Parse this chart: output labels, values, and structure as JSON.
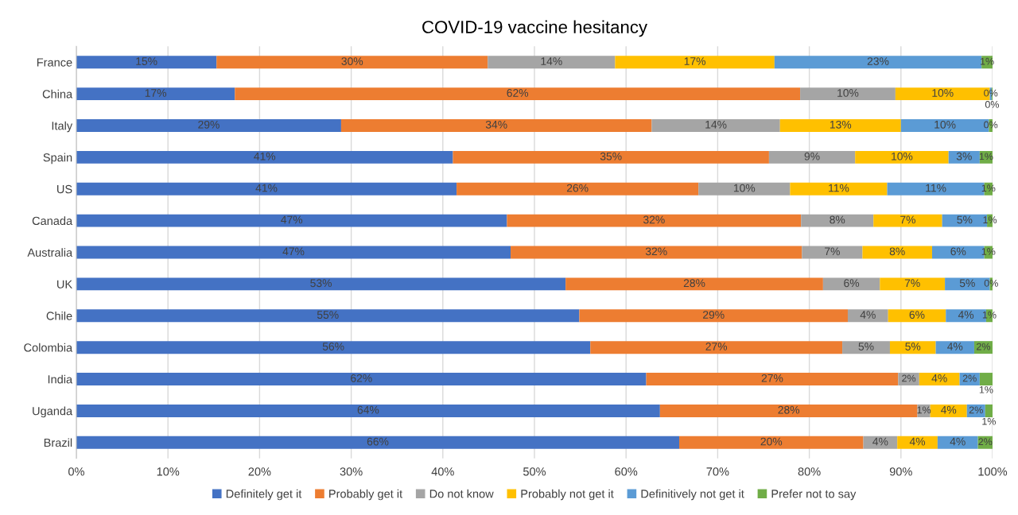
{
  "chart_data": {
    "type": "bar",
    "orientation": "horizontal",
    "stacked": true,
    "title": "COVID-19 vaccine hesitancy",
    "categories": [
      "France",
      "China",
      "Italy",
      "Spain",
      "US",
      "Canada",
      "Australia",
      "UK",
      "Chile",
      "Colombia",
      "India",
      "Uganda",
      "Brazil"
    ],
    "series": [
      {
        "name": "Definitely get it",
        "color": "#4472c4",
        "values": [
          15.3,
          17.3,
          28.9,
          41.1,
          41.5,
          47.0,
          47.4,
          53.4,
          54.9,
          56.1,
          62.2,
          63.7,
          65.8
        ],
        "value_labels": [
          "15%",
          "17%",
          "29%",
          "41%",
          "41%",
          "47%",
          "47%",
          "53%",
          "55%",
          "56%",
          "62%",
          "64%",
          "66%"
        ]
      },
      {
        "name": "Probably get it",
        "color": "#ed7d31",
        "values": [
          29.6,
          61.7,
          33.9,
          34.5,
          26.4,
          32.1,
          31.8,
          28.1,
          29.3,
          27.5,
          27.5,
          28.1,
          20.1
        ],
        "value_labels": [
          "30%",
          "62%",
          "34%",
          "35%",
          "26%",
          "32%",
          "32%",
          "28%",
          "29%",
          "27%",
          "27%",
          "28%",
          "20%"
        ]
      },
      {
        "name": "Do not know",
        "color": "#a5a5a5",
        "values": [
          13.9,
          10.4,
          14.0,
          9.4,
          10.0,
          7.9,
          6.6,
          6.2,
          4.4,
          5.2,
          2.3,
          1.4,
          3.7
        ],
        "value_labels": [
          "14%",
          "10%",
          "14%",
          "9%",
          "10%",
          "8%",
          "7%",
          "6%",
          "4%",
          "5%",
          "2%",
          "1%",
          "4%"
        ]
      },
      {
        "name": "Probably not get it",
        "color": "#ffc000",
        "values": [
          17.4,
          10.3,
          13.2,
          10.2,
          10.6,
          7.5,
          7.6,
          7.1,
          6.3,
          5.0,
          4.4,
          4.0,
          4.4
        ],
        "value_labels": [
          "17%",
          "10%",
          "13%",
          "10%",
          "11%",
          "7%",
          "8%",
          "7%",
          "6%",
          "5%",
          "4%",
          "4%",
          "4%"
        ]
      },
      {
        "name": "Definitively not get it",
        "color": "#5b9bd5",
        "values": [
          22.6,
          0.2,
          9.6,
          3.4,
          10.6,
          4.9,
          5.7,
          4.9,
          4.4,
          4.2,
          2.2,
          2.0,
          4.4
        ],
        "value_labels": [
          "23%",
          "0%",
          "10%",
          "3%",
          "11%",
          "5%",
          "6%",
          "5%",
          "4%",
          "4%",
          "2%",
          "2%",
          "4%"
        ]
      },
      {
        "name": "Prefer not to say",
        "color": "#70ad47",
        "values": [
          1.2,
          0.1,
          0.4,
          1.4,
          0.9,
          0.6,
          0.9,
          0.3,
          0.7,
          2.0,
          1.4,
          0.8,
          1.6
        ],
        "value_labels": [
          "1%",
          "0%",
          "0%",
          "1%",
          "1%",
          "1%",
          "1%",
          "0%",
          "1%",
          "2%",
          "1%",
          "1%",
          "2%"
        ]
      }
    ],
    "xlim": [
      0,
      100
    ],
    "xticks": [
      {
        "value": 0,
        "label": "0%"
      },
      {
        "value": 10,
        "label": "10%"
      },
      {
        "value": 20,
        "label": "20%"
      },
      {
        "value": 30,
        "label": "30%"
      },
      {
        "value": 40,
        "label": "40%"
      },
      {
        "value": 50,
        "label": "50%"
      },
      {
        "value": 60,
        "label": "60%"
      },
      {
        "value": 70,
        "label": "70%"
      },
      {
        "value": 80,
        "label": "80%"
      },
      {
        "value": 90,
        "label": "90%"
      },
      {
        "value": 100,
        "label": "100%"
      }
    ],
    "grid": "x",
    "legend": "bottom"
  }
}
